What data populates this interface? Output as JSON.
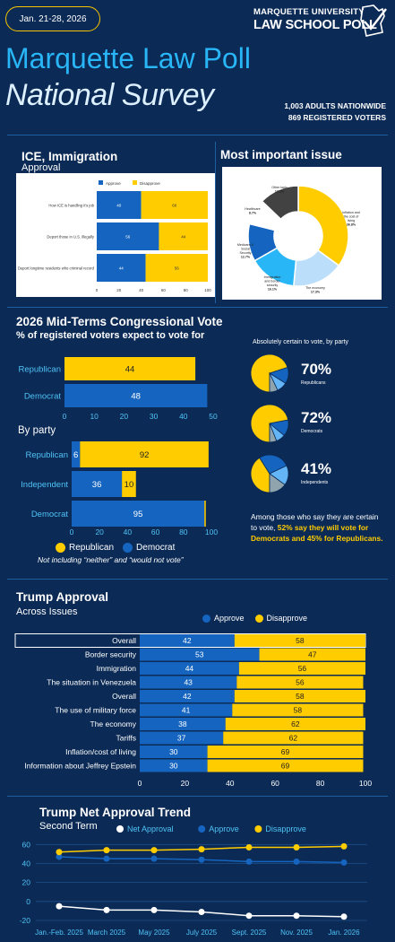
{
  "header": {
    "date_range": "Jan. 21-28, 2026",
    "logo_line1": "MARQUETTE UNIVERSITY",
    "logo_line2": "LAW SCHOOL POLL",
    "title_line1": "Marquette Law Poll",
    "title_line2": "National Survey",
    "sample_line1": "1,003 ADULTS NATIONWIDE",
    "sample_line2": "869 REGISTERED VOTERS"
  },
  "colors": {
    "background": "#0b2a55",
    "approve": "#1565c0",
    "disapprove": "#ffcc00",
    "accent": "#29b6f6"
  },
  "chart_data": [
    {
      "id": "ice",
      "type": "bar",
      "title": "ICE, Immigration",
      "subtitle": "Approval",
      "categories": [
        "How ICE is handling it's job",
        "Deport those in U.S. illegally",
        "Deport longtime residents who criminal record"
      ],
      "series": [
        {
          "name": "Approve",
          "values": [
            40,
            56,
            44
          ]
        },
        {
          "name": "Disapprove",
          "values": [
            60,
            44,
            56
          ]
        }
      ],
      "xlim": [
        0,
        100
      ],
      "x_ticks": [
        0,
        20,
        40,
        60,
        80,
        100
      ],
      "legend": "top"
    },
    {
      "id": "issue",
      "type": "pie",
      "title": "Most important issue",
      "labels": [
        "Inflation and the cost of living",
        "The economy",
        "Immigration and border security",
        "Medicare & Social Security",
        "Healthcare",
        "Other topic"
      ],
      "values": [
        36.8,
        17.3,
        16.1,
        12.7,
        8.7,
        13.5
      ],
      "value_labels": [
        "36.8%",
        "17.3%",
        "16.1%",
        "12.7%",
        "8.7%",
        "13.5%"
      ],
      "colors": [
        "#ffcc00",
        "#bbdefb",
        "#29b6f6",
        "#1565c0",
        "#ffffff",
        "#424242"
      ]
    },
    {
      "id": "midterm",
      "type": "bar",
      "title": "2026 Mid-Terms Congressional Vote",
      "subtitle": "% of registered voters expect to vote for",
      "categories": [
        "Republican",
        "Democrat"
      ],
      "values": [
        44,
        48
      ],
      "colors": [
        "#ffcc00",
        "#1565c0"
      ],
      "xlim": [
        0,
        50
      ],
      "x_ticks": [
        0,
        10,
        20,
        30,
        40,
        50
      ]
    },
    {
      "id": "byparty",
      "type": "bar",
      "title": "By party",
      "categories": [
        "Republican",
        "Independent",
        "Democrat"
      ],
      "series": [
        {
          "name": "Democrat",
          "values": [
            6,
            36,
            95
          ]
        },
        {
          "name": "Republican",
          "values": [
            92,
            10,
            1
          ]
        }
      ],
      "xlim": [
        0,
        100
      ],
      "x_ticks": [
        0,
        20,
        40,
        60,
        80,
        100
      ],
      "legend": "bottom",
      "note": "Not including “neither” and “would not vote”"
    },
    {
      "id": "certain",
      "type": "pie",
      "title": "Absolutely certain to vote, by party",
      "groups": [
        {
          "pct": "70%",
          "label": "Republicans",
          "slices": [
            70,
            14,
            9,
            7
          ],
          "colors": [
            "#ffcc00",
            "#1565c0",
            "#64b5f6",
            "#90a4ae"
          ]
        },
        {
          "pct": "72%",
          "label": "Democrats",
          "slices": [
            72,
            14,
            8,
            6
          ],
          "colors": [
            "#ffcc00",
            "#1565c0",
            "#64b5f6",
            "#90a4ae"
          ]
        },
        {
          "pct": "41%",
          "label": "Independents",
          "slices": [
            41,
            27,
            17,
            15
          ],
          "colors": [
            "#ffcc00",
            "#1565c0",
            "#64b5f6",
            "#90a4ae"
          ]
        }
      ],
      "note_prefix": "Among those who say they are certain to vote, ",
      "note_highlight": "52% say they will vote for Democrats and 45% for Republicans."
    },
    {
      "id": "trump",
      "type": "bar",
      "title": "Trump Approval",
      "subtitle": "Across Issues",
      "categories": [
        "Overall",
        "Border security",
        "Immigration",
        "The situation in Venezuela",
        "Overall",
        "The use of military force",
        "The economy",
        "Tariffs",
        "Inflation/cost of living",
        "Information about Jeffrey Epstein"
      ],
      "series": [
        {
          "name": "Approve",
          "values": [
            42,
            53,
            44,
            43,
            42,
            41,
            38,
            37,
            30,
            30
          ]
        },
        {
          "name": "Disapprove",
          "values": [
            58,
            47,
            56,
            56,
            58,
            58,
            62,
            62,
            69,
            69
          ]
        }
      ],
      "xlim": [
        0,
        100
      ],
      "x_ticks": [
        0,
        20,
        40,
        60,
        80,
        100
      ],
      "legend": "top"
    },
    {
      "id": "trend",
      "type": "line",
      "title": "Trump Net Approval Trend",
      "subtitle": "Second Term",
      "x": [
        "Jan.-Feb. 2025",
        "March 2025",
        "May 2025",
        "July 2025",
        "Sept. 2025",
        "Nov. 2025",
        "Jan. 2026"
      ],
      "series": [
        {
          "name": "Net Approval",
          "color": "#ffffff",
          "values": [
            -5,
            -9,
            -9,
            -11,
            -15,
            -15,
            -16
          ]
        },
        {
          "name": "Approve",
          "color": "#1565c0",
          "values": [
            47,
            45,
            45,
            44,
            42,
            42,
            41
          ]
        },
        {
          "name": "Disapprove",
          "color": "#ffcc00",
          "values": [
            52,
            54,
            54,
            55,
            57,
            57,
            58
          ]
        }
      ],
      "ylim": [
        -20,
        65
      ],
      "y_ticks": [
        -20,
        0,
        20,
        40,
        60
      ],
      "legend": "top"
    }
  ]
}
